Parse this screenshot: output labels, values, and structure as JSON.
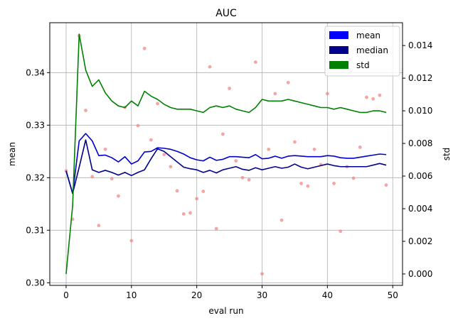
{
  "chart_data": {
    "type": "line",
    "title": "AUC",
    "xlabel": "eval run",
    "ylabel_left": "mean",
    "ylabel_right": "std",
    "xlim": [
      -2.5,
      51.5
    ],
    "ylim_left": [
      0.2995,
      0.3495
    ],
    "ylim_right": [
      -0.0007,
      0.0154
    ],
    "x_ticks": [
      0,
      10,
      20,
      30,
      40,
      50
    ],
    "y_ticks_left": [
      0.3,
      0.31,
      0.32,
      0.33,
      0.34
    ],
    "y_tick_labels_left": [
      "0.30",
      "0.31",
      "0.32",
      "0.33",
      "0.34"
    ],
    "y_ticks_right": [
      0.0,
      0.002,
      0.004,
      0.006,
      0.008,
      0.01,
      0.012,
      0.014
    ],
    "y_tick_labels_right": [
      "0.000",
      "0.002",
      "0.004",
      "0.006",
      "0.008",
      "0.010",
      "0.012",
      "0.014"
    ],
    "grid": true,
    "legend_position": "top-right",
    "legend": [
      {
        "name": "mean",
        "color": "#0000ff"
      },
      {
        "name": "median",
        "color": "#00008b"
      },
      {
        "name": "std",
        "color": "#008000"
      }
    ],
    "x": [
      0,
      1,
      2,
      3,
      4,
      5,
      6,
      7,
      8,
      9,
      10,
      11,
      12,
      13,
      14,
      15,
      16,
      17,
      18,
      19,
      20,
      21,
      22,
      23,
      24,
      25,
      26,
      27,
      28,
      29,
      30,
      31,
      32,
      33,
      34,
      35,
      36,
      37,
      38,
      39,
      40,
      41,
      42,
      43,
      44,
      45,
      46,
      47,
      48,
      49
    ],
    "series": [
      {
        "name": "mean",
        "axis": "left",
        "color": "#0000cd",
        "values": [
          0.3213,
          0.317,
          0.327,
          0.3284,
          0.327,
          0.3242,
          0.3243,
          0.3238,
          0.323,
          0.324,
          0.3226,
          0.3232,
          0.3249,
          0.325,
          0.3257,
          0.3256,
          0.3254,
          0.325,
          0.3245,
          0.3238,
          0.3234,
          0.3232,
          0.3239,
          0.3233,
          0.3235,
          0.324,
          0.324,
          0.3239,
          0.3238,
          0.3244,
          0.3236,
          0.3237,
          0.3241,
          0.3237,
          0.3241,
          0.3242,
          0.3241,
          0.324,
          0.324,
          0.324,
          0.3242,
          0.3241,
          0.3238,
          0.3237,
          0.3237,
          0.3239,
          0.3241,
          0.3243,
          0.3245,
          0.3244
        ]
      },
      {
        "name": "median",
        "axis": "left",
        "color": "#00008b",
        "values": [
          0.3213,
          0.317,
          0.322,
          0.3272,
          0.3215,
          0.321,
          0.3214,
          0.321,
          0.3205,
          0.321,
          0.3204,
          0.321,
          0.3215,
          0.3236,
          0.3255,
          0.325,
          0.324,
          0.323,
          0.322,
          0.3217,
          0.3215,
          0.321,
          0.3214,
          0.3209,
          0.3215,
          0.3218,
          0.3221,
          0.3216,
          0.3214,
          0.3219,
          0.3215,
          0.3218,
          0.3221,
          0.3218,
          0.322,
          0.3226,
          0.322,
          0.3217,
          0.322,
          0.3223,
          0.3226,
          0.3223,
          0.3221,
          0.3221,
          0.3221,
          0.3221,
          0.3221,
          0.3224,
          0.3227,
          0.3224
        ]
      },
      {
        "name": "std",
        "axis": "right",
        "color": "#008000",
        "values": [
          0.0,
          0.0042,
          0.0147,
          0.0125,
          0.0115,
          0.0119,
          0.0111,
          0.0106,
          0.0103,
          0.0102,
          0.0106,
          0.0103,
          0.0112,
          0.0109,
          0.0107,
          0.0104,
          0.0102,
          0.0101,
          0.0101,
          0.0101,
          0.01,
          0.0099,
          0.0102,
          0.0103,
          0.0102,
          0.0103,
          0.0101,
          0.01,
          0.0099,
          0.0102,
          0.0107,
          0.0106,
          0.0106,
          0.0106,
          0.0107,
          0.0106,
          0.0105,
          0.0104,
          0.0103,
          0.0102,
          0.0102,
          0.0101,
          0.0102,
          0.0101,
          0.01,
          0.0099,
          0.0099,
          0.01,
          0.01,
          0.0099
        ]
      }
    ],
    "scatter": {
      "name": "runs",
      "axis": "left",
      "color": "#f08080",
      "points": [
        {
          "x": 0,
          "y": 0.3213
        },
        {
          "x": 1,
          "y": 0.3121
        },
        {
          "x": 2,
          "y": 0.347
        },
        {
          "x": 3,
          "y": 0.3328
        },
        {
          "x": 4,
          "y": 0.3202
        },
        {
          "x": 5,
          "y": 0.3109
        },
        {
          "x": 6,
          "y": 0.3254
        },
        {
          "x": 7,
          "y": 0.3198
        },
        {
          "x": 8,
          "y": 0.3165
        },
        {
          "x": 9,
          "y": 0.3334
        },
        {
          "x": 10,
          "y": 0.308
        },
        {
          "x": 11,
          "y": 0.3299
        },
        {
          "x": 12,
          "y": 0.3446
        },
        {
          "x": 13,
          "y": 0.3272
        },
        {
          "x": 14,
          "y": 0.3341
        },
        {
          "x": 15,
          "y": 0.3244
        },
        {
          "x": 16,
          "y": 0.3221
        },
        {
          "x": 17,
          "y": 0.3175
        },
        {
          "x": 18,
          "y": 0.3131
        },
        {
          "x": 19,
          "y": 0.3133
        },
        {
          "x": 20,
          "y": 0.316
        },
        {
          "x": 21,
          "y": 0.3174
        },
        {
          "x": 22,
          "y": 0.3411
        },
        {
          "x": 23,
          "y": 0.3103
        },
        {
          "x": 24,
          "y": 0.3283
        },
        {
          "x": 25,
          "y": 0.337
        },
        {
          "x": 26,
          "y": 0.3232
        },
        {
          "x": 27,
          "y": 0.32
        },
        {
          "x": 28,
          "y": 0.3196
        },
        {
          "x": 29,
          "y": 0.342
        },
        {
          "x": 30,
          "y": 0.3017
        },
        {
          "x": 31,
          "y": 0.3254
        },
        {
          "x": 32,
          "y": 0.336
        },
        {
          "x": 33,
          "y": 0.3119
        },
        {
          "x": 34,
          "y": 0.3381
        },
        {
          "x": 35,
          "y": 0.3268
        },
        {
          "x": 36,
          "y": 0.3189
        },
        {
          "x": 37,
          "y": 0.3184
        },
        {
          "x": 38,
          "y": 0.3254
        },
        {
          "x": 39,
          "y": 0.3225
        },
        {
          "x": 40,
          "y": 0.336
        },
        {
          "x": 41,
          "y": 0.3189
        },
        {
          "x": 42,
          "y": 0.3098
        },
        {
          "x": 43,
          "y": 0.3221
        },
        {
          "x": 44,
          "y": 0.3199
        },
        {
          "x": 45,
          "y": 0.3258
        },
        {
          "x": 46,
          "y": 0.3353
        },
        {
          "x": 47,
          "y": 0.335
        },
        {
          "x": 48,
          "y": 0.3357
        },
        {
          "x": 49,
          "y": 0.3186
        }
      ]
    }
  }
}
